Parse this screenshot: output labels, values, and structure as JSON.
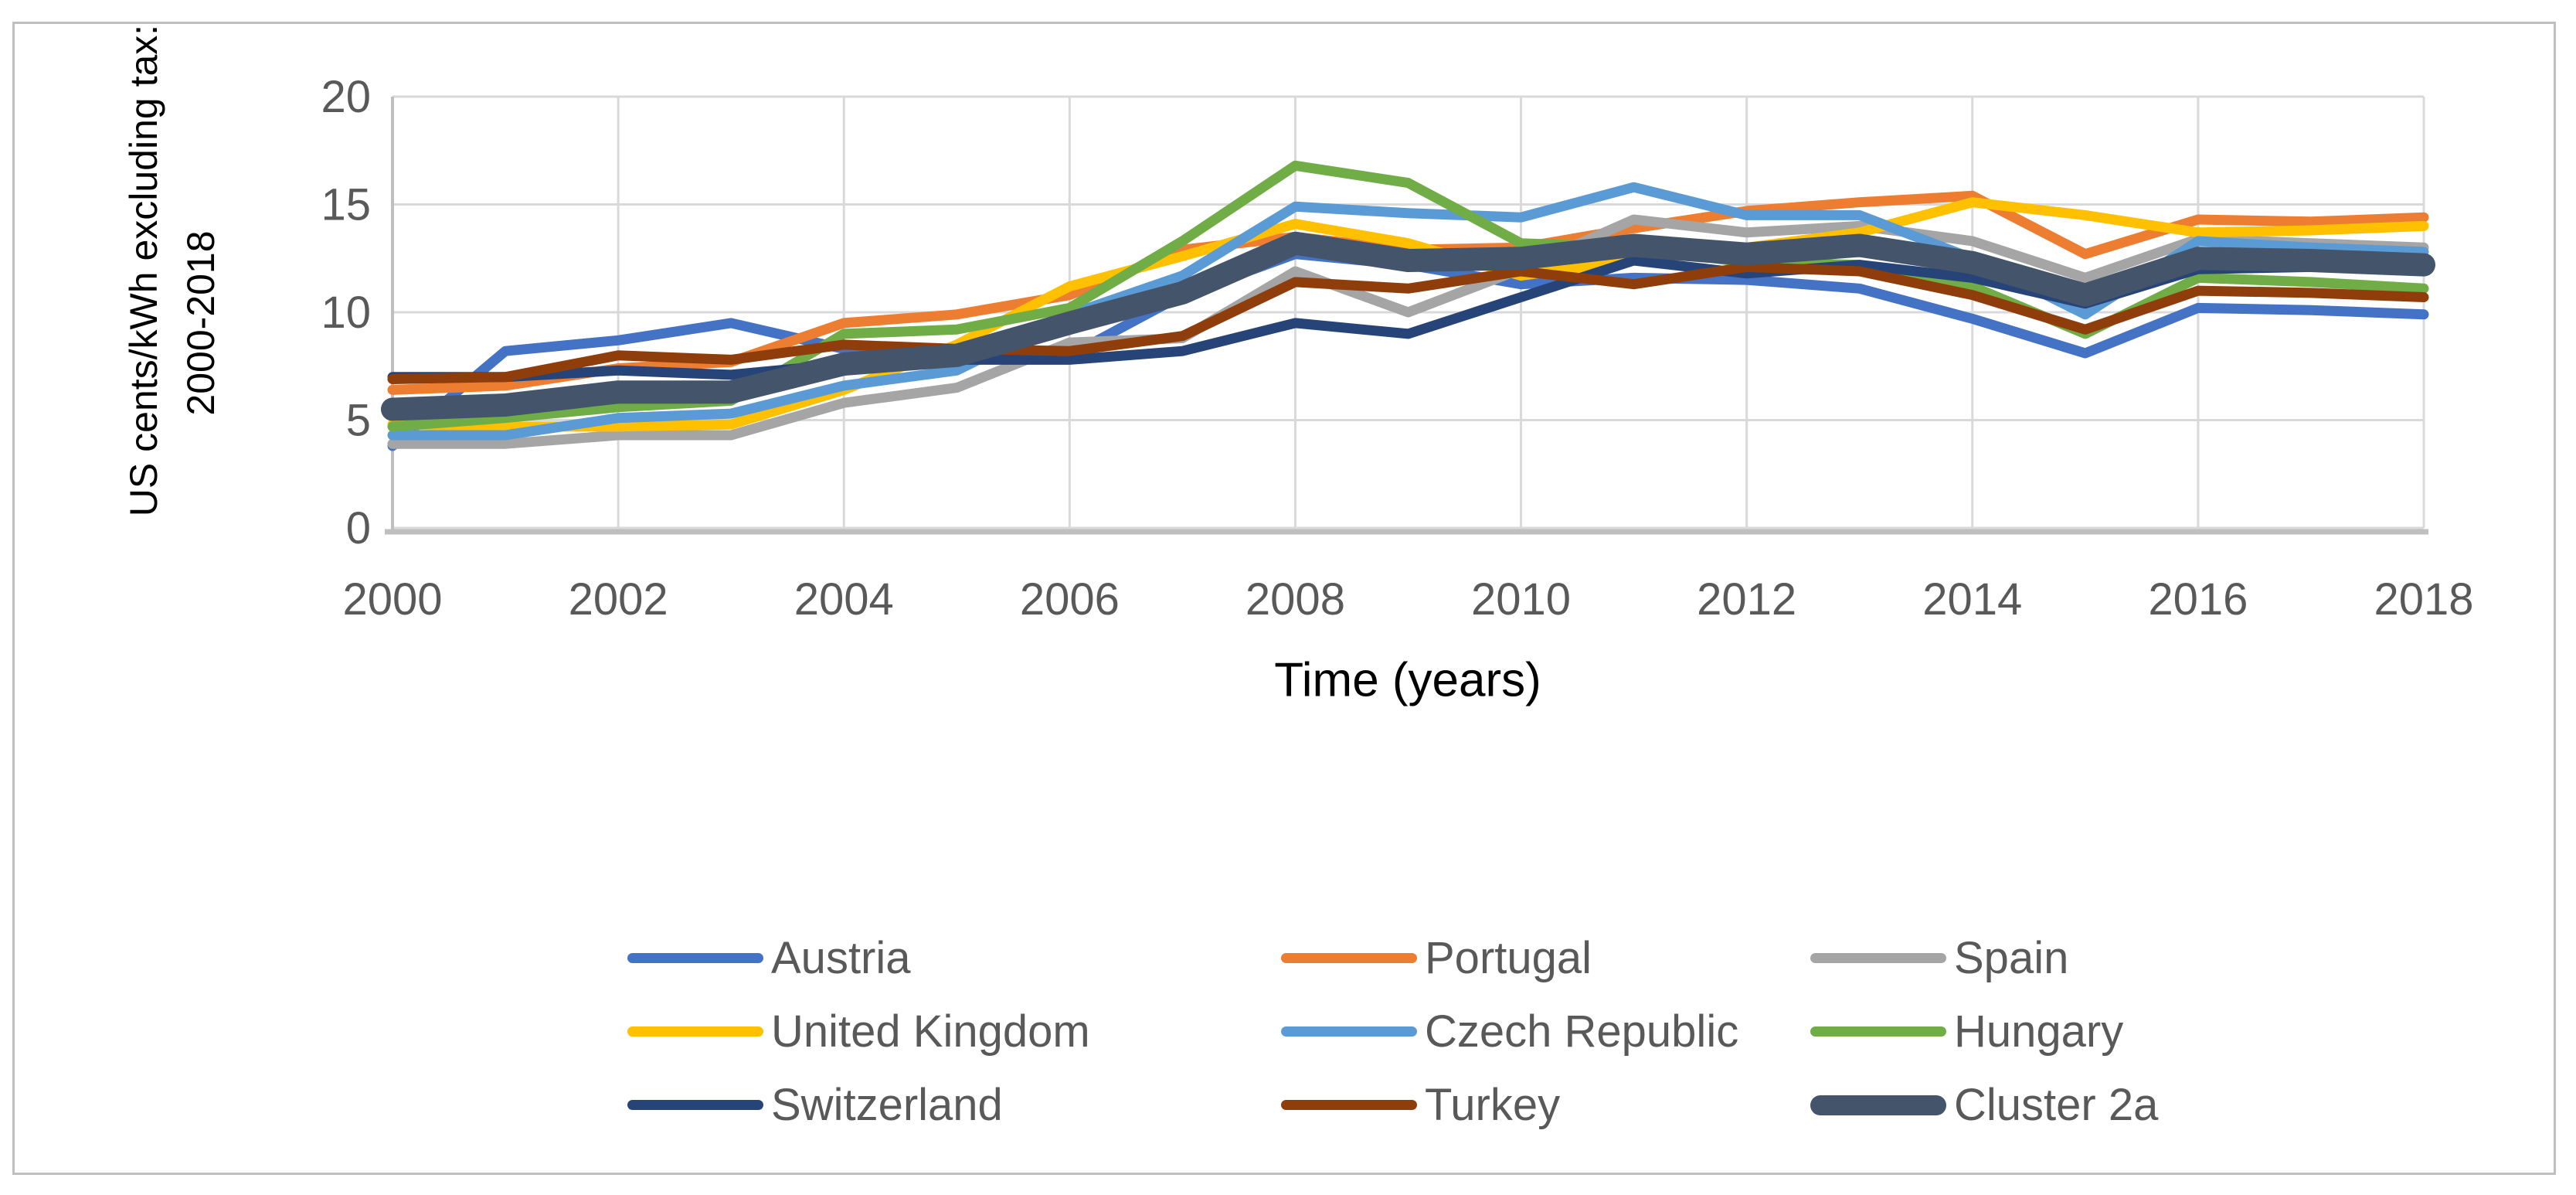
{
  "figure": {
    "background": "#ffffff",
    "border_color": "#bfbfbf"
  },
  "chart_data": {
    "type": "line",
    "title": "",
    "ylabel_line1": "US cents/kWh  excluding tax:",
    "ylabel_line2": "2000-2018",
    "xlabel": "Time (years)",
    "xlim": [
      2000,
      2018
    ],
    "ylim": [
      0,
      20
    ],
    "grid": true,
    "legend_position": "bottom",
    "gridline_color": "#d9d9d9",
    "axis_line_color": "#bfbfbf",
    "axis_text_color": "#595959",
    "title_text_color": "#000000",
    "x": [
      2000,
      2001,
      2002,
      2003,
      2004,
      2005,
      2006,
      2007,
      2008,
      2009,
      2010,
      2011,
      2012,
      2013,
      2014,
      2015,
      2016,
      2017,
      2018
    ],
    "xticks": [
      2000,
      2002,
      2004,
      2006,
      2008,
      2010,
      2012,
      2014,
      2016,
      2018
    ],
    "xtick_labels": [
      "2000",
      "2002",
      "2004",
      "2006",
      "2008",
      "2010",
      "2012",
      "2014",
      "2016",
      "2018"
    ],
    "yticks": [
      0,
      5,
      10,
      15,
      20
    ],
    "ytick_labels": [
      "0",
      "5",
      "10",
      "15",
      "20"
    ],
    "series": [
      {
        "name": "Austria",
        "color": "#4472c4",
        "thick": false,
        "values": [
          3.8,
          8.2,
          8.7,
          9.5,
          8.3,
          7.9,
          8.0,
          10.8,
          12.7,
          12.2,
          11.3,
          11.6,
          11.5,
          11.1,
          9.7,
          8.1,
          10.2,
          10.1,
          9.9
        ]
      },
      {
        "name": "Portugal",
        "color": "#ed7d31",
        "thick": false,
        "values": [
          6.4,
          6.6,
          7.4,
          7.7,
          9.5,
          9.9,
          10.8,
          12.9,
          13.5,
          12.9,
          13.0,
          13.9,
          14.7,
          15.1,
          15.4,
          12.7,
          14.3,
          14.2,
          14.4
        ]
      },
      {
        "name": "Spain",
        "color": "#a5a5a5",
        "thick": false,
        "values": [
          3.9,
          3.9,
          4.3,
          4.3,
          5.8,
          6.5,
          8.6,
          8.8,
          11.9,
          10.0,
          12.0,
          14.3,
          13.7,
          14.0,
          13.3,
          11.6,
          13.4,
          13.2,
          13.0
        ]
      },
      {
        "name": "United Kingdom",
        "color": "#ffc000",
        "thick": false,
        "values": [
          4.8,
          4.7,
          4.7,
          4.8,
          6.4,
          8.5,
          11.2,
          12.6,
          14.1,
          13.2,
          11.7,
          12.4,
          13.0,
          13.7,
          15.1,
          14.5,
          13.7,
          13.8,
          14.0
        ]
      },
      {
        "name": "Czech Republic",
        "color": "#5b9bd5",
        "thick": false,
        "values": [
          4.3,
          4.3,
          5.1,
          5.3,
          6.6,
          7.3,
          9.9,
          11.7,
          14.9,
          14.6,
          14.4,
          15.8,
          14.5,
          14.5,
          12.5,
          9.9,
          13.3,
          13.0,
          12.8
        ]
      },
      {
        "name": "Hungary",
        "color": "#70ad47",
        "thick": false,
        "values": [
          4.7,
          5.1,
          5.6,
          5.9,
          9.0,
          9.2,
          10.2,
          13.3,
          16.8,
          16.0,
          13.2,
          13.0,
          12.3,
          12.2,
          11.2,
          9.0,
          11.6,
          11.4,
          11.1
        ]
      },
      {
        "name": "Switzerland",
        "color": "#264478",
        "thick": false,
        "values": [
          7.0,
          7.0,
          7.3,
          7.1,
          7.6,
          7.8,
          7.8,
          8.2,
          9.5,
          9.0,
          10.7,
          12.4,
          11.8,
          12.2,
          11.6,
          10.4,
          12.0,
          12.1,
          12.2
        ]
      },
      {
        "name": "Turkey",
        "color": "#8f3e0b",
        "thick": false,
        "values": [
          6.9,
          7.0,
          8.0,
          7.8,
          8.5,
          8.3,
          8.2,
          8.9,
          11.4,
          11.1,
          11.9,
          11.3,
          12.1,
          11.9,
          10.8,
          9.2,
          11.0,
          10.9,
          10.7
        ]
      },
      {
        "name": "Cluster 2a",
        "color": "#44546a",
        "thick": true,
        "values": [
          5.5,
          5.7,
          6.3,
          6.3,
          7.6,
          8.0,
          9.5,
          10.9,
          13.2,
          12.4,
          12.5,
          13.1,
          12.7,
          13.1,
          12.3,
          10.8,
          12.5,
          12.4,
          12.2
        ]
      }
    ]
  }
}
